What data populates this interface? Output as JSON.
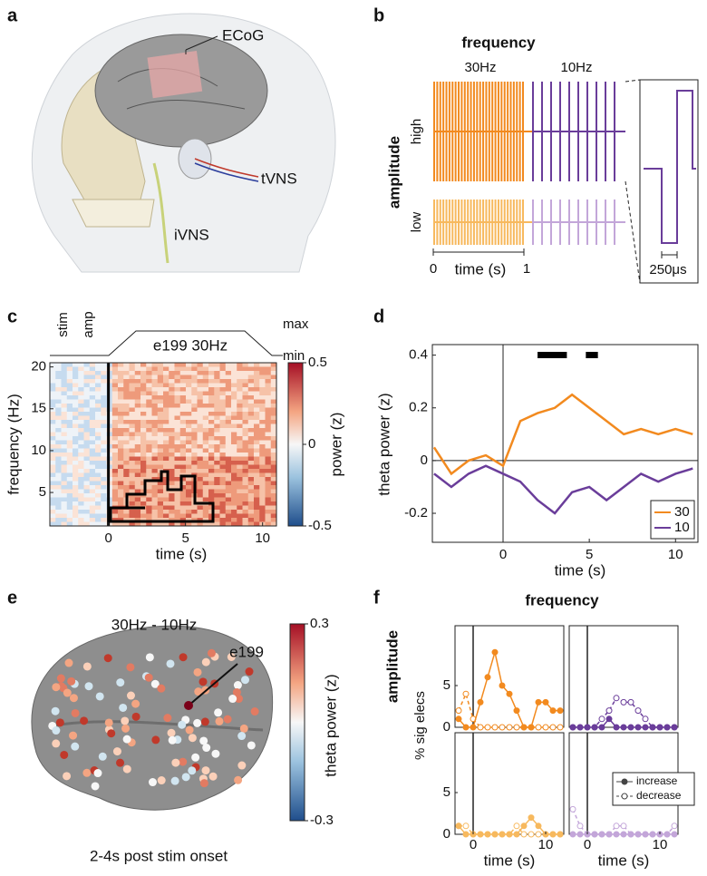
{
  "panel_labels": [
    "a",
    "b",
    "c",
    "d",
    "e",
    "f"
  ],
  "a": {
    "labels": [
      "ECoG",
      "tVNS",
      "iVNS"
    ]
  },
  "b": {
    "title": "frequency",
    "columns": [
      "30Hz",
      "10Hz"
    ],
    "row_title": "amplitude",
    "rows": [
      "high",
      "low"
    ],
    "xlabel": "time (s)",
    "xticks": [
      0,
      1
    ],
    "inset_scale": "250μs"
  },
  "c": {
    "stim_labels": [
      "stim",
      "amp"
    ],
    "condition": "e199 30Hz",
    "levels": [
      "max",
      "min"
    ],
    "ylabel": "frequency (Hz)",
    "xlabel": "time (s)",
    "xlim": [
      -3.8,
      10.9
    ],
    "ylim": [
      1,
      20.5
    ],
    "xticks": [
      0,
      5,
      10
    ],
    "yticks": [
      5,
      10,
      15,
      20
    ],
    "colorbar": {
      "label": "power (z)",
      "lim": [
        -0.5,
        0.5
      ],
      "ticks": [
        0.5,
        0,
        -0.5
      ]
    }
  },
  "e": {
    "title": "30Hz - 10Hz",
    "electrode": "e199",
    "colorbar": {
      "label": "theta power (z)",
      "lim": [
        -0.3,
        0.3
      ],
      "ticks": [
        0.3,
        -0.3
      ]
    },
    "caption": "2-4s post stim onset"
  },
  "chart_data": [
    {
      "type": "line",
      "ylabel": "theta power (z)",
      "xlabel": "time (s)",
      "x": [
        -4,
        -3,
        -2,
        -1,
        0,
        1,
        2,
        3,
        4,
        5,
        6,
        7,
        8,
        9,
        10,
        11
      ],
      "series": [
        {
          "name": "30",
          "color": "#f28a1f",
          "values": [
            0.05,
            -0.05,
            0.0,
            0.02,
            -0.02,
            0.15,
            0.18,
            0.2,
            0.25,
            0.2,
            0.15,
            0.1,
            0.12,
            0.1,
            0.12,
            0.1
          ]
        },
        {
          "name": "10",
          "color": "#6a3d9a",
          "values": [
            -0.05,
            -0.1,
            -0.05,
            -0.02,
            -0.05,
            -0.08,
            -0.15,
            -0.2,
            -0.12,
            -0.1,
            -0.15,
            -0.1,
            -0.05,
            -0.08,
            -0.05,
            -0.03
          ]
        }
      ],
      "sig_windows": [
        [
          2,
          3.7
        ],
        [
          4.8,
          5.5
        ]
      ],
      "xlim": [
        -4.1,
        11.3
      ],
      "ylim": [
        -0.31,
        0.44
      ],
      "xticks": [
        0,
        5,
        10
      ],
      "yticks": [
        -0.2,
        0,
        0.2,
        0.4
      ],
      "legend": "lower right"
    },
    {
      "type": "line_grid",
      "title": "frequency",
      "row_title": "amplitude",
      "ylabel": "% sig elecs",
      "xlabels": [
        "time (s)",
        "time (s)"
      ],
      "series_names": [
        "increase",
        "decrease"
      ],
      "x": [
        -2,
        -1,
        0,
        1,
        2,
        3,
        4,
        5,
        6,
        7,
        8,
        9,
        10,
        11,
        12
      ],
      "xlim": [
        -2.5,
        12.5
      ],
      "ylim": [
        0,
        10
      ],
      "xticks": [
        0,
        10
      ],
      "yticks": [
        0,
        5
      ],
      "panels": [
        {
          "color": "#f28a1f",
          "increase": [
            1,
            0,
            0,
            3,
            6,
            9,
            5,
            4,
            2,
            0,
            0,
            3,
            3,
            2,
            2
          ],
          "decrease": [
            2,
            4,
            1,
            0,
            0,
            0,
            0,
            0,
            0,
            0,
            0,
            0,
            0,
            0,
            0
          ]
        },
        {
          "color": "#6a3d9a",
          "increase": [
            0,
            0,
            0,
            0,
            0,
            1,
            0,
            0,
            0,
            0,
            0,
            0,
            0,
            0,
            0
          ],
          "decrease": [
            0,
            0,
            0,
            0,
            1,
            2,
            3.5,
            3,
            3,
            2,
            1,
            0,
            0,
            0,
            0
          ]
        },
        {
          "color": "#f7b95e",
          "increase": [
            1,
            0,
            0,
            0,
            0,
            0,
            0,
            0,
            0,
            1,
            2,
            1,
            0,
            0,
            0
          ],
          "decrease": [
            1,
            1,
            0,
            0,
            0,
            0,
            0,
            0,
            1,
            0,
            0,
            0,
            0,
            0,
            0
          ]
        },
        {
          "color": "#c3a6d9",
          "increase": [
            0,
            0,
            0,
            0,
            0,
            0,
            0,
            0,
            0,
            0,
            0,
            0,
            0,
            0,
            0
          ],
          "decrease": [
            3,
            1,
            0,
            0,
            0,
            0,
            1,
            1,
            0,
            0,
            0,
            0,
            0,
            0,
            1
          ]
        }
      ]
    }
  ]
}
